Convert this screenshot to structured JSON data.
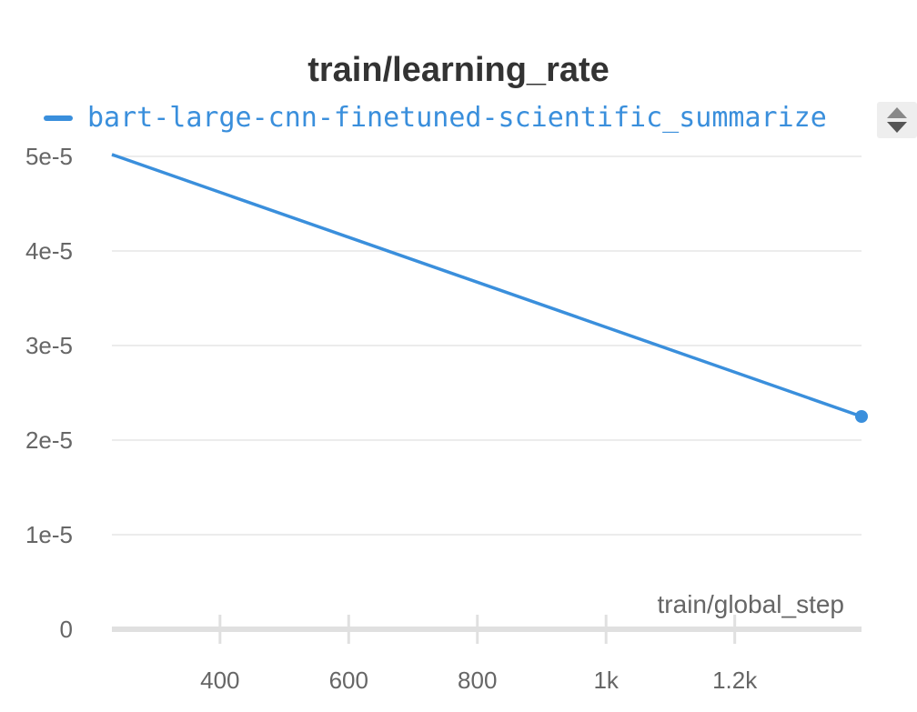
{
  "chart_data": {
    "type": "line",
    "title": "train/learning_rate",
    "xlabel": "train/global_step",
    "ylabel": "",
    "xlim": [
      232,
      1397
    ],
    "ylim": [
      0,
      5e-05
    ],
    "x_ticks": [
      {
        "value": 400,
        "label": "400"
      },
      {
        "value": 600,
        "label": "600"
      },
      {
        "value": 800,
        "label": "800"
      },
      {
        "value": 1000,
        "label": "1k"
      },
      {
        "value": 1200,
        "label": "1.2k"
      }
    ],
    "y_ticks": [
      {
        "value": 0,
        "label": "0"
      },
      {
        "value": 1e-05,
        "label": "1e-5"
      },
      {
        "value": 2e-05,
        "label": "2e-5"
      },
      {
        "value": 3e-05,
        "label": "3e-5"
      },
      {
        "value": 4e-05,
        "label": "4e-5"
      },
      {
        "value": 5e-05,
        "label": "5e-5"
      }
    ],
    "grid": true,
    "legend_position": "top-left",
    "series": [
      {
        "name": "bart-large-cnn-finetuned-scientific_summarize",
        "color": "#3a8fdc",
        "x": [
          232,
          1397
        ],
        "y": [
          5.02e-05,
          2.25e-05
        ]
      }
    ]
  }
}
